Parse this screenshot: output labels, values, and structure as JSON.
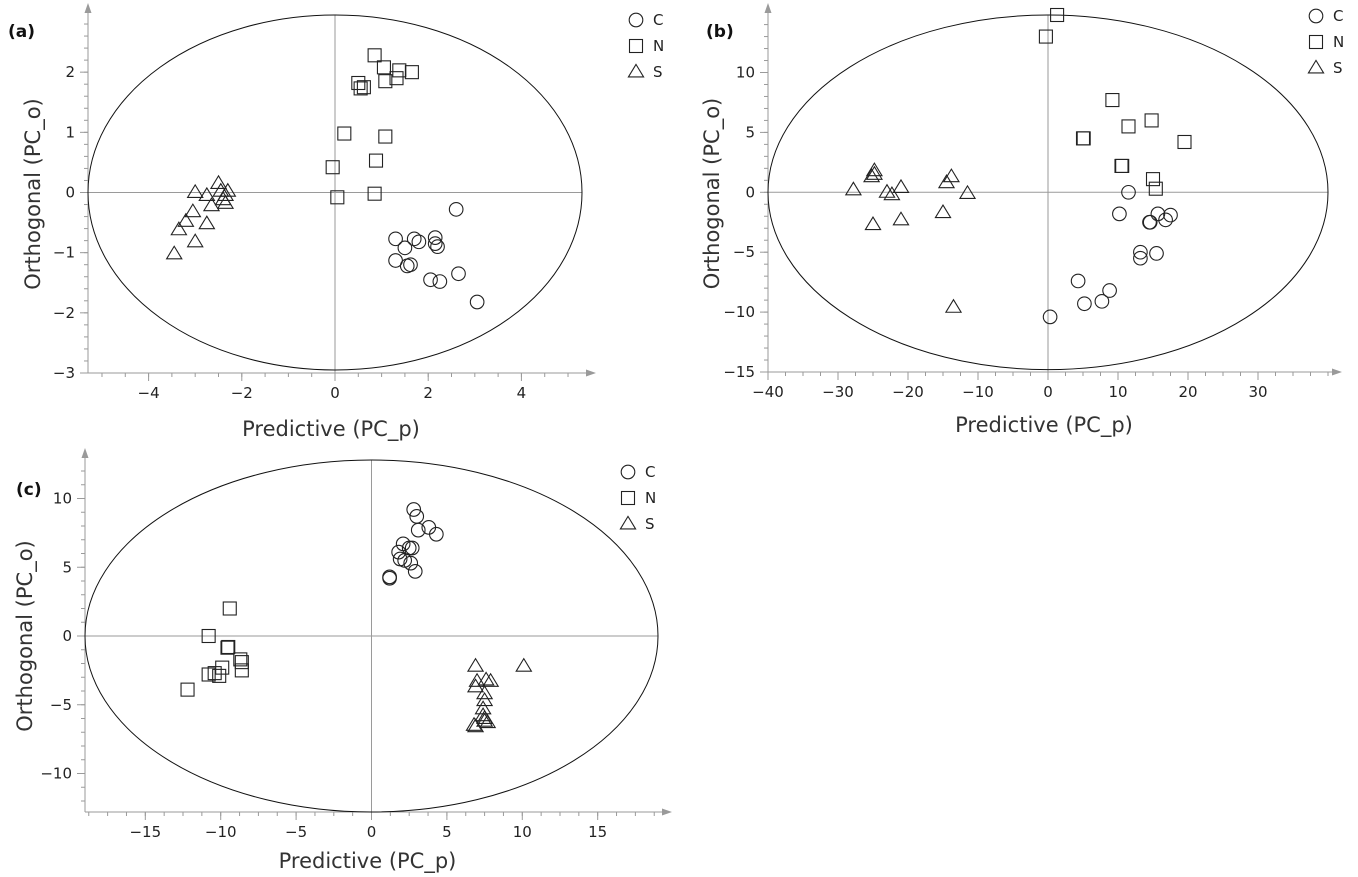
{
  "chart_data": [
    {
      "type": "scatter",
      "panel_label": "(a)",
      "xlabel": "Predictive (PC_p)",
      "ylabel": "Orthogonal (PC_o)",
      "xlim": [
        -5.3,
        5.3
      ],
      "ylim": [
        -3,
        2.95
      ],
      "xticks": [
        -4,
        -2,
        0,
        2,
        4
      ],
      "yticks": [
        -3,
        -2,
        -1,
        0,
        1,
        2
      ],
      "ellipse": {
        "cx": 0,
        "cy": 0,
        "rx": 5.3,
        "ry": 2.95
      },
      "legend": [
        "C",
        "N",
        "S"
      ],
      "series": [
        {
          "name": "C",
          "marker": "circle",
          "points": [
            [
              2.6,
              -0.28
            ],
            [
              1.3,
              -0.77
            ],
            [
              1.5,
              -0.92
            ],
            [
              1.7,
              -0.77
            ],
            [
              1.8,
              -0.82
            ],
            [
              2.15,
              -0.75
            ],
            [
              2.15,
              -0.85
            ],
            [
              2.2,
              -0.9
            ],
            [
              1.3,
              -1.13
            ],
            [
              1.55,
              -1.22
            ],
            [
              1.62,
              -1.2
            ],
            [
              2.05,
              -1.45
            ],
            [
              2.25,
              -1.48
            ],
            [
              2.65,
              -1.35
            ],
            [
              3.05,
              -1.82
            ]
          ]
        },
        {
          "name": "N",
          "marker": "square",
          "points": [
            [
              0.85,
              2.28
            ],
            [
              1.05,
              2.08
            ],
            [
              0.5,
              1.82
            ],
            [
              0.62,
              1.75
            ],
            [
              0.55,
              1.73
            ],
            [
              1.32,
              1.9
            ],
            [
              1.38,
              2.03
            ],
            [
              1.08,
              1.85
            ],
            [
              1.65,
              2.0
            ],
            [
              0.2,
              0.98
            ],
            [
              1.08,
              0.93
            ],
            [
              -0.05,
              0.42
            ],
            [
              0.88,
              0.53
            ],
            [
              0.05,
              -0.08
            ],
            [
              0.85,
              -0.02
            ]
          ]
        },
        {
          "name": "S",
          "marker": "triangle",
          "points": [
            [
              -2.5,
              0.15
            ],
            [
              -3.0,
              0.0
            ],
            [
              -2.75,
              -0.05
            ],
            [
              -2.45,
              0.02
            ],
            [
              -2.3,
              0.02
            ],
            [
              -2.35,
              -0.05
            ],
            [
              -2.4,
              -0.12
            ],
            [
              -2.35,
              -0.18
            ],
            [
              -2.65,
              -0.22
            ],
            [
              -3.05,
              -0.32
            ],
            [
              -3.2,
              -0.48
            ],
            [
              -2.75,
              -0.52
            ],
            [
              -3.35,
              -0.62
            ],
            [
              -3.0,
              -0.82
            ],
            [
              -3.45,
              -1.02
            ]
          ]
        }
      ]
    },
    {
      "type": "scatter",
      "panel_label": "(b)",
      "xlabel": "Predictive (PC_p)",
      "ylabel": "Orthogonal (PC_o)",
      "xlim": [
        -40,
        40
      ],
      "ylim": [
        -15,
        14.8
      ],
      "xticks": [
        -40,
        -30,
        -20,
        -10,
        0,
        10,
        20,
        30
      ],
      "yticks": [
        -15,
        -10,
        -5,
        0,
        5,
        10
      ],
      "ellipse": {
        "cx": 0,
        "cy": 0,
        "rx": 40,
        "ry": 14.8
      },
      "legend": [
        "C",
        "N",
        "S"
      ],
      "series": [
        {
          "name": "C",
          "marker": "circle",
          "points": [
            [
              11.5,
              0.0
            ],
            [
              10.2,
              -1.8
            ],
            [
              15.7,
              -1.8
            ],
            [
              17.5,
              -1.9
            ],
            [
              16.8,
              -2.3
            ],
            [
              14.5,
              -2.5
            ],
            [
              14.6,
              -2.5
            ],
            [
              13.2,
              -5.0
            ],
            [
              13.2,
              -5.5
            ],
            [
              15.5,
              -5.1
            ],
            [
              4.3,
              -7.4
            ],
            [
              5.2,
              -9.3
            ],
            [
              7.7,
              -9.1
            ],
            [
              8.8,
              -8.2
            ],
            [
              0.3,
              -10.4
            ]
          ]
        },
        {
          "name": "N",
          "marker": "square",
          "points": [
            [
              -0.3,
              13.0
            ],
            [
              1.3,
              14.8
            ],
            [
              9.2,
              7.7
            ],
            [
              14.8,
              6.0
            ],
            [
              11.5,
              5.5
            ],
            [
              19.5,
              4.2
            ],
            [
              5.0,
              4.5
            ],
            [
              5.1,
              4.5
            ],
            [
              10.5,
              2.2
            ],
            [
              10.6,
              2.2
            ],
            [
              15.0,
              1.1
            ],
            [
              15.4,
              0.3
            ]
          ]
        },
        {
          "name": "S",
          "marker": "triangle",
          "points": [
            [
              -24.8,
              1.8
            ],
            [
              -24.8,
              1.5
            ],
            [
              -25.2,
              1.3
            ],
            [
              -27.8,
              0.2
            ],
            [
              -21.0,
              0.4
            ],
            [
              -14.5,
              0.8
            ],
            [
              -13.8,
              1.3
            ],
            [
              -23.0,
              0.0
            ],
            [
              -22.3,
              -0.2
            ],
            [
              -11.5,
              -0.1
            ],
            [
              -15.0,
              -1.7
            ],
            [
              -25.0,
              -2.7
            ],
            [
              -21.0,
              -2.3
            ],
            [
              -13.5,
              -9.6
            ]
          ]
        }
      ]
    },
    {
      "type": "scatter",
      "panel_label": "(c)",
      "xlabel": "Predictive (PC_p)",
      "ylabel": "Orthogonal (PC_o)",
      "xlim": [
        -19,
        19
      ],
      "ylim": [
        -12.8,
        12.8
      ],
      "xticks": [
        -15,
        -10,
        -5,
        0,
        5,
        10,
        15
      ],
      "yticks": [
        -10,
        -5,
        0,
        5,
        10
      ],
      "ellipse": {
        "cx": 0,
        "cy": 0,
        "rx": 19,
        "ry": 12.8
      },
      "legend": [
        "C",
        "N",
        "S"
      ],
      "series": [
        {
          "name": "C",
          "marker": "circle",
          "points": [
            [
              2.8,
              9.2
            ],
            [
              3.0,
              8.7
            ],
            [
              3.8,
              7.9
            ],
            [
              4.3,
              7.4
            ],
            [
              3.1,
              7.7
            ],
            [
              2.1,
              6.7
            ],
            [
              2.5,
              6.4
            ],
            [
              2.7,
              6.4
            ],
            [
              1.8,
              6.1
            ],
            [
              1.9,
              5.6
            ],
            [
              2.2,
              5.5
            ],
            [
              2.6,
              5.3
            ],
            [
              2.9,
              4.7
            ],
            [
              1.2,
              4.3
            ],
            [
              1.2,
              4.2
            ]
          ]
        },
        {
          "name": "N",
          "marker": "square",
          "points": [
            [
              -9.4,
              2.0
            ],
            [
              -10.8,
              0.0
            ],
            [
              -9.5,
              -0.8
            ],
            [
              -9.55,
              -0.85
            ],
            [
              -8.7,
              -1.7
            ],
            [
              -8.6,
              -1.9
            ],
            [
              -9.9,
              -2.3
            ],
            [
              -8.6,
              -2.5
            ],
            [
              -10.4,
              -2.7
            ],
            [
              -10.8,
              -2.8
            ],
            [
              -10.1,
              -2.9
            ],
            [
              -12.2,
              -3.9
            ]
          ]
        },
        {
          "name": "S",
          "marker": "triangle",
          "points": [
            [
              6.9,
              -2.2
            ],
            [
              10.1,
              -2.2
            ],
            [
              7.0,
              -3.3
            ],
            [
              7.6,
              -3.2
            ],
            [
              7.9,
              -3.3
            ],
            [
              6.9,
              -3.7
            ],
            [
              7.5,
              -4.2
            ],
            [
              7.5,
              -4.7
            ],
            [
              7.4,
              -5.3
            ],
            [
              7.4,
              -5.8
            ],
            [
              7.5,
              -6.0
            ],
            [
              7.5,
              -6.2
            ],
            [
              6.8,
              -6.5
            ],
            [
              6.9,
              -6.6
            ],
            [
              7.7,
              -6.3
            ]
          ]
        }
      ]
    }
  ]
}
